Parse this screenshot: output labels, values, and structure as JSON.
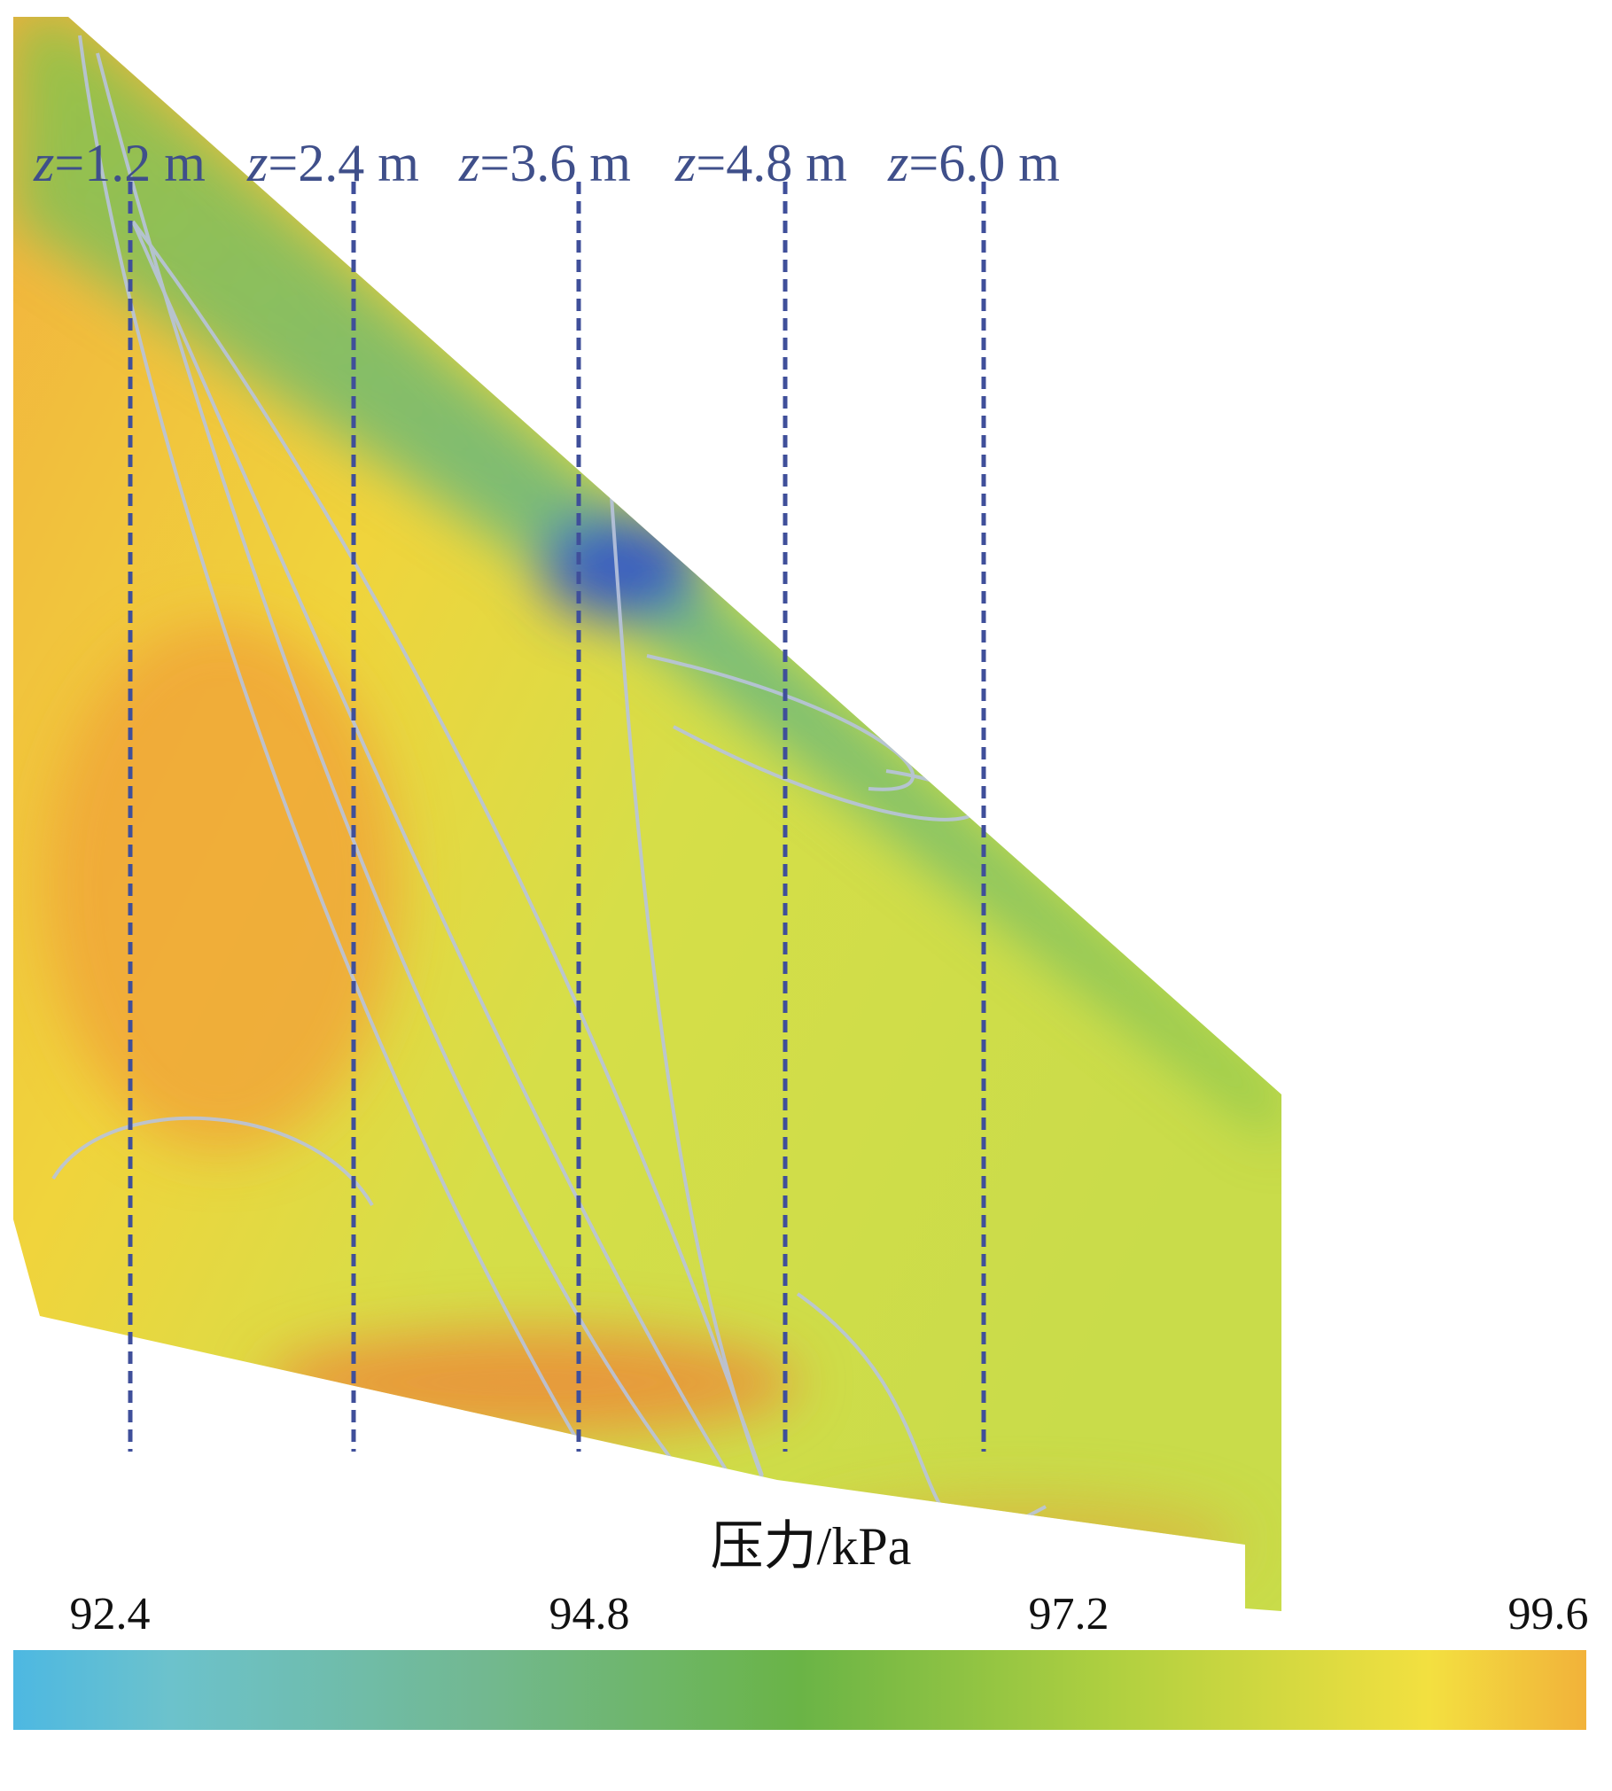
{
  "sections": [
    {
      "symbol": "z",
      "text": "=1.2 m"
    },
    {
      "symbol": "z",
      "text": "=2.4 m"
    },
    {
      "symbol": "z",
      "text": "=3.6 m"
    },
    {
      "symbol": "z",
      "text": "=4.8 m"
    },
    {
      "symbol": "z",
      "text": "=6.0 m"
    }
  ],
  "colorbar": {
    "title": "压力/kPa",
    "lim": [
      92.4,
      99.6
    ],
    "ticks": [
      92.4,
      94.8,
      97.2,
      99.6
    ]
  }
}
